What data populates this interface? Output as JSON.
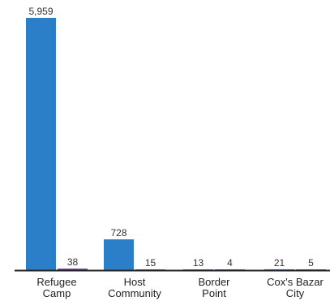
{
  "chart_data": {
    "type": "bar",
    "categories": [
      {
        "line1": "Refugee",
        "line2": "Camp"
      },
      {
        "line1": "Host",
        "line2": "Community"
      },
      {
        "line1": "Border",
        "line2": "Point"
      },
      {
        "line1": "Cox's Bazar",
        "line2": "City"
      }
    ],
    "series": [
      {
        "values": [
          5959,
          728,
          13,
          21
        ],
        "labels": [
          "5,959",
          "728",
          "13",
          "21"
        ],
        "color": "#2a7fc8"
      },
      {
        "values": [
          38,
          15,
          4,
          5
        ],
        "labels": [
          "38",
          "15",
          "4",
          "5"
        ],
        "color": "#7b4aa0"
      }
    ],
    "ylim": [
      0,
      5959
    ],
    "grid": false,
    "legend": "none",
    "axis_color": "#222222"
  }
}
